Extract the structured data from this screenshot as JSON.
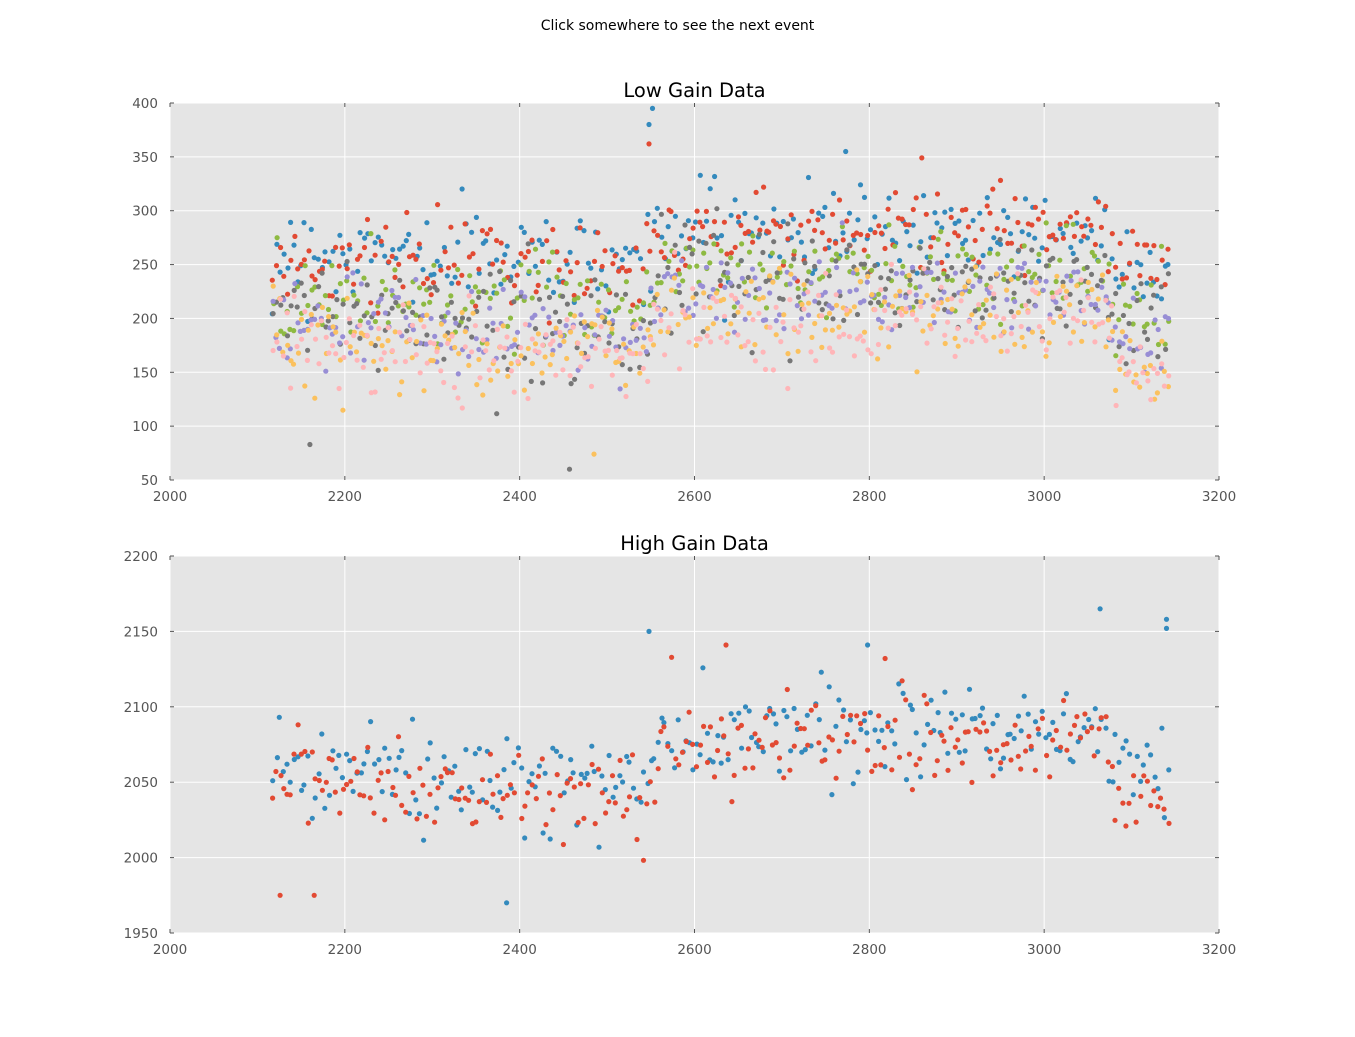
{
  "window": {
    "suptitle": "Click somewhere to see the next event"
  },
  "style": {
    "axes_bg": "#e5e5e5",
    "grid_color": "#ffffff",
    "tick_label_color": "#555555",
    "title_color": "#000000",
    "palette": [
      "#348abd",
      "#e24a33",
      "#988ed5",
      "#777777",
      "#fbc15e",
      "#8eba42",
      "#ffb5b8"
    ]
  },
  "chart_data": [
    {
      "type": "scatter",
      "title": "Low Gain Data",
      "xlabel": "",
      "ylabel": "",
      "xlim": [
        2000,
        3200
      ],
      "ylim": [
        50,
        400
      ],
      "xticks": [
        2000,
        2200,
        2400,
        2600,
        2800,
        3000,
        3200
      ],
      "yticks": [
        50,
        100,
        150,
        200,
        250,
        300,
        350,
        400
      ],
      "grid": true,
      "legend": "none",
      "x_range_of_points": [
        2118,
        3142
      ],
      "series": [
        {
          "color": "#348abd",
          "profile": [
            [
              2118,
              262
            ],
            [
              2540,
              254
            ],
            [
              2560,
              283
            ],
            [
              2900,
              282
            ],
            [
              3070,
              280
            ],
            [
              3080,
              252
            ],
            [
              3142,
              252
            ]
          ],
          "spread": 38,
          "samples": [
            [
              2552,
              395
            ],
            [
              2548,
              380
            ],
            [
              2773,
              355
            ]
          ]
        },
        {
          "color": "#e24a33",
          "profile": [
            [
              2118,
              252
            ],
            [
              2540,
              248
            ],
            [
              2560,
              280
            ],
            [
              3070,
              282
            ],
            [
              3080,
              248
            ],
            [
              3142,
              250
            ]
          ],
          "spread": 36,
          "samples": [
            [
              2548,
              362
            ],
            [
              2860,
              349
            ]
          ]
        },
        {
          "color": "#8eba42",
          "profile": [
            [
              2118,
              222
            ],
            [
              2540,
              218
            ],
            [
              2560,
              245
            ],
            [
              3070,
              245
            ],
            [
              3080,
              205
            ],
            [
              3142,
              200
            ]
          ],
          "spread": 38,
          "samples": []
        },
        {
          "color": "#777777",
          "profile": [
            [
              2118,
              208
            ],
            [
              2540,
              196
            ],
            [
              2560,
              230
            ],
            [
              3070,
              230
            ],
            [
              3080,
              195
            ],
            [
              3142,
              195
            ]
          ],
          "spread": 42,
          "samples": [
            [
              2457,
              60
            ],
            [
              2160,
              83
            ]
          ]
        },
        {
          "color": "#988ed5",
          "profile": [
            [
              2118,
              196
            ],
            [
              2540,
              186
            ],
            [
              2560,
              220
            ],
            [
              3070,
              222
            ],
            [
              3080,
              175
            ],
            [
              3142,
              178
            ]
          ],
          "spread": 36,
          "samples": []
        },
        {
          "color": "#fbc15e",
          "profile": [
            [
              2118,
              182
            ],
            [
              2540,
              172
            ],
            [
              2560,
              208
            ],
            [
              3070,
              205
            ],
            [
              3080,
              160
            ],
            [
              3142,
              158
            ]
          ],
          "spread": 38,
          "samples": [
            [
              2485,
              74
            ]
          ]
        },
        {
          "color": "#ffb5b8",
          "profile": [
            [
              2118,
              176
            ],
            [
              2540,
              168
            ],
            [
              2560,
              198
            ],
            [
              3070,
              200
            ],
            [
              3080,
              150
            ],
            [
              3142,
              150
            ]
          ],
          "spread": 36,
          "samples": []
        }
      ]
    },
    {
      "type": "scatter",
      "title": "High Gain Data",
      "xlabel": "",
      "ylabel": "",
      "xlim": [
        2000,
        3200
      ],
      "ylim": [
        1950,
        2200
      ],
      "xticks": [
        2000,
        2200,
        2400,
        2600,
        2800,
        3000,
        3200
      ],
      "yticks": [
        1950,
        2000,
        2050,
        2100,
        2150,
        2200
      ],
      "grid": true,
      "legend": "none",
      "x_range_of_points": [
        2118,
        3142
      ],
      "series": [
        {
          "color": "#348abd",
          "profile": [
            [
              2118,
              2058
            ],
            [
              2540,
              2045
            ],
            [
              2560,
              2085
            ],
            [
              3070,
              2088
            ],
            [
              3080,
              2055
            ],
            [
              3142,
              2060
            ]
          ],
          "spread": 28,
          "samples": [
            [
              3064,
              2165
            ],
            [
              3140,
              2158
            ],
            [
              3140,
              2152
            ],
            [
              2548,
              2150
            ],
            [
              2385,
              1970
            ],
            [
              2798,
              2141
            ]
          ]
        },
        {
          "color": "#e24a33",
          "profile": [
            [
              2118,
              2052
            ],
            [
              2540,
              2040
            ],
            [
              2560,
              2075
            ],
            [
              3070,
              2075
            ],
            [
              3080,
              2035
            ],
            [
              3142,
              2040
            ]
          ],
          "spread": 28,
          "samples": [
            [
              2636,
              2141
            ],
            [
              2126,
              1975
            ],
            [
              2165,
              1975
            ],
            [
              2818,
              2132
            ]
          ]
        }
      ]
    }
  ]
}
